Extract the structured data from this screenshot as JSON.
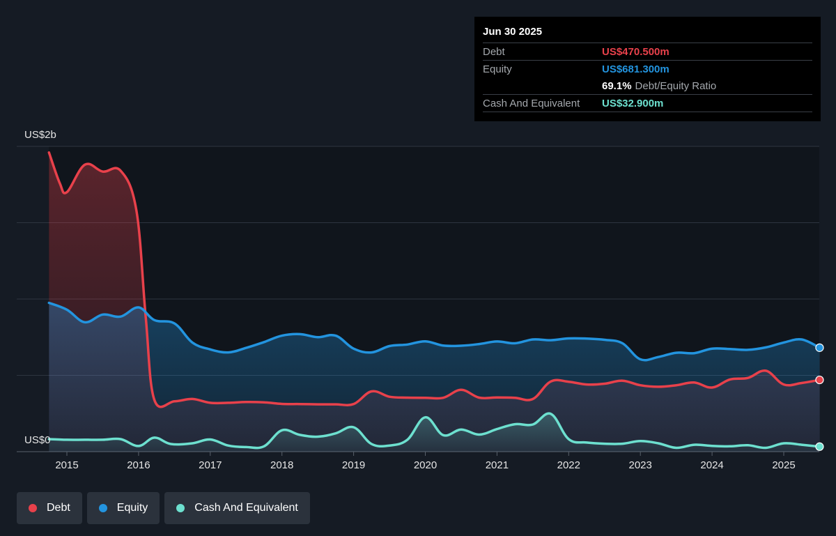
{
  "tooltip": {
    "date": "Jun 30 2025",
    "rows": [
      {
        "label": "Debt",
        "value": "US$470.500m",
        "color": "#e8414b"
      },
      {
        "label": "Equity",
        "value": "US$681.300m",
        "color": "#2394df"
      },
      {
        "ratio_value": "69.1%",
        "ratio_label": "Debt/Equity Ratio"
      },
      {
        "label": "Cash And Equivalent",
        "value": "US$32.900m",
        "color": "#6de0cf"
      }
    ]
  },
  "legend": [
    {
      "label": "Debt",
      "color": "#e8414b",
      "icon": "debt-dot-icon"
    },
    {
      "label": "Equity",
      "color": "#2394df",
      "icon": "equity-dot-icon"
    },
    {
      "label": "Cash And Equivalent",
      "color": "#6de0cf",
      "icon": "cash-dot-icon"
    }
  ],
  "chart_data": {
    "type": "area",
    "y_top_label": "US$2b",
    "y_bottom_label": "US$0",
    "ylim": [
      0,
      2000
    ],
    "xlim": [
      2014.7,
      2025.5
    ],
    "x_ticks": [
      "2015",
      "2016",
      "2017",
      "2018",
      "2019",
      "2020",
      "2021",
      "2022",
      "2023",
      "2024",
      "2025"
    ],
    "grid": true,
    "series": [
      {
        "name": "Debt",
        "color": "#e8414b",
        "x": [
          2014.75,
          2014.9,
          2015.0,
          2015.25,
          2015.5,
          2015.75,
          2015.97,
          2016.1,
          2016.22,
          2016.5,
          2016.75,
          2017.0,
          2017.25,
          2017.5,
          2017.75,
          2018.0,
          2018.25,
          2018.5,
          2018.75,
          2019.0,
          2019.25,
          2019.5,
          2019.75,
          2020.0,
          2020.25,
          2020.5,
          2020.75,
          2021.0,
          2021.25,
          2021.5,
          2021.75,
          2022.0,
          2022.25,
          2022.5,
          2022.75,
          2023.0,
          2023.25,
          2023.5,
          2023.75,
          2024.0,
          2024.25,
          2024.5,
          2024.75,
          2025.0,
          2025.25,
          2025.5
        ],
        "y": [
          1960,
          1760,
          1700,
          1880,
          1835,
          1840,
          1580,
          880,
          340,
          330,
          345,
          320,
          320,
          325,
          323,
          313,
          312,
          310,
          310,
          312,
          395,
          360,
          354,
          353,
          353,
          405,
          354,
          355,
          353,
          345,
          460,
          458,
          440,
          445,
          465,
          435,
          425,
          435,
          453,
          420,
          473,
          483,
          530,
          440,
          450,
          470
        ]
      },
      {
        "name": "Equity",
        "color": "#2394df",
        "x": [
          2014.75,
          2015.0,
          2015.25,
          2015.5,
          2015.75,
          2016.0,
          2016.22,
          2016.5,
          2016.75,
          2017.0,
          2017.25,
          2017.5,
          2017.75,
          2018.0,
          2018.25,
          2018.5,
          2018.75,
          2019.0,
          2019.25,
          2019.5,
          2019.75,
          2020.0,
          2020.25,
          2020.5,
          2020.75,
          2021.0,
          2021.25,
          2021.5,
          2021.75,
          2022.0,
          2022.25,
          2022.5,
          2022.75,
          2023.0,
          2023.25,
          2023.5,
          2023.75,
          2024.0,
          2024.25,
          2024.5,
          2024.75,
          2025.0,
          2025.25,
          2025.5
        ],
        "y": [
          975,
          930,
          848,
          898,
          885,
          945,
          862,
          840,
          715,
          670,
          650,
          680,
          718,
          760,
          770,
          750,
          760,
          675,
          650,
          692,
          702,
          723,
          695,
          694,
          705,
          722,
          710,
          735,
          730,
          742,
          741,
          733,
          710,
          605,
          620,
          648,
          645,
          675,
          672,
          667,
          683,
          715,
          735,
          681
        ]
      },
      {
        "name": "Cash And Equivalent",
        "color": "#6de0cf",
        "x": [
          2014.75,
          2015.0,
          2015.25,
          2015.5,
          2015.75,
          2016.0,
          2016.22,
          2016.45,
          2016.75,
          2017.0,
          2017.25,
          2017.5,
          2017.75,
          2018.0,
          2018.25,
          2018.5,
          2018.75,
          2019.0,
          2019.25,
          2019.5,
          2019.75,
          2020.0,
          2020.25,
          2020.5,
          2020.75,
          2021.0,
          2021.25,
          2021.5,
          2021.75,
          2022.0,
          2022.25,
          2022.5,
          2022.75,
          2023.0,
          2023.25,
          2023.5,
          2023.75,
          2024.0,
          2024.25,
          2024.5,
          2024.75,
          2025.0,
          2025.25,
          2025.5
        ],
        "y": [
          82,
          78,
          78,
          78,
          82,
          37,
          92,
          50,
          55,
          80,
          40,
          30,
          35,
          140,
          110,
          98,
          120,
          160,
          50,
          40,
          78,
          225,
          108,
          145,
          112,
          148,
          180,
          178,
          248,
          82,
          60,
          52,
          52,
          70,
          55,
          25,
          45,
          38,
          35,
          42,
          25,
          55,
          45,
          33
        ]
      }
    ]
  }
}
